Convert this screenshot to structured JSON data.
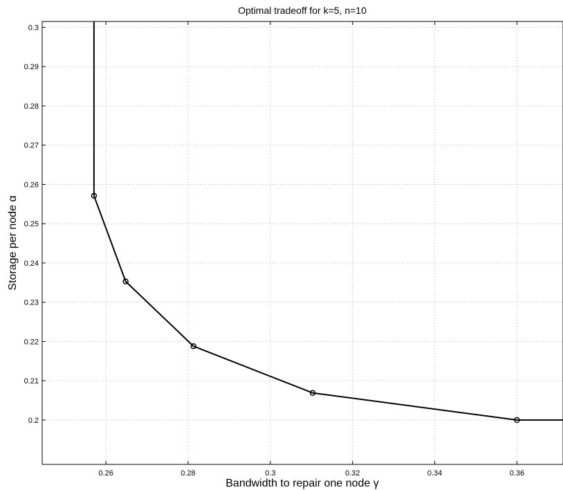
{
  "chart_data": {
    "type": "line",
    "title": "Optimal tradeoff for k=5, n=10",
    "xlabel": "Bandwidth to repair one node γ",
    "ylabel": "Storage per node α",
    "xlim": [
      0.2445,
      0.3712
    ],
    "ylim": [
      0.1887,
      0.3015
    ],
    "grid": true,
    "x_ticks": [
      0.26,
      0.28,
      0.3,
      0.32,
      0.34,
      0.36
    ],
    "x_tick_labels": [
      "0.26",
      "0.28",
      "0.3",
      "0.32",
      "0.34",
      "0.36"
    ],
    "y_ticks": [
      0.2,
      0.21,
      0.22,
      0.23,
      0.24,
      0.25,
      0.26,
      0.27,
      0.28,
      0.29,
      0.3
    ],
    "y_tick_labels": [
      "0.2",
      "0.21",
      "0.22",
      "0.23",
      "0.24",
      "0.25",
      "0.26",
      "0.27",
      "0.28",
      "0.29",
      "0.3"
    ],
    "series": [
      {
        "color": "#000000",
        "x": [
          0.2571,
          0.2571,
          0.2648,
          0.2813,
          0.3103,
          0.36,
          0.3712
        ],
        "y": [
          0.3015,
          0.2571,
          0.2353,
          0.2188,
          0.2069,
          0.2,
          0.2
        ],
        "markers": [
          {
            "x": 0.2571,
            "y": 0.2571
          },
          {
            "x": 0.2648,
            "y": 0.2353
          },
          {
            "x": 0.2813,
            "y": 0.2188
          },
          {
            "x": 0.3103,
            "y": 0.2069
          },
          {
            "x": 0.36,
            "y": 0.2
          }
        ]
      }
    ]
  }
}
